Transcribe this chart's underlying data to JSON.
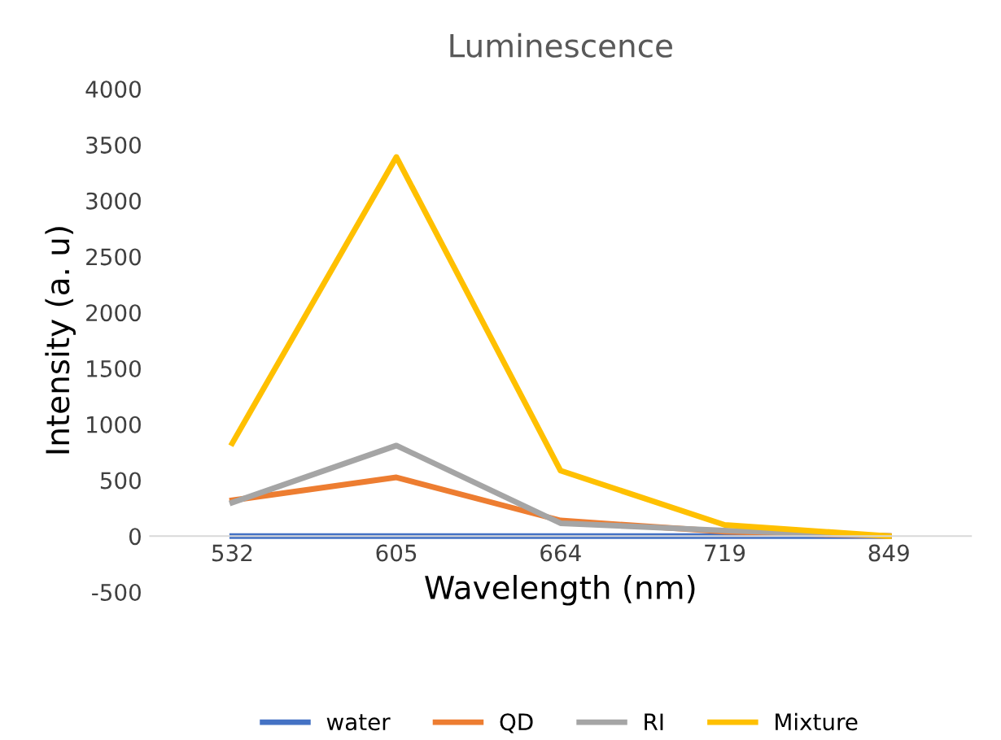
{
  "chart_data": {
    "type": "line",
    "title": "Luminescence",
    "xlabel": "Wavelength (nm)",
    "ylabel": "Intensity (a. u)",
    "categories": [
      "532",
      "605",
      "664",
      "719",
      "849"
    ],
    "series": [
      {
        "name": "water",
        "color": "#4472c4",
        "values": [
          0,
          0,
          0,
          0,
          0
        ]
      },
      {
        "name": "QD",
        "color": "#ed7d31",
        "values": [
          320,
          525,
          140,
          40,
          0
        ]
      },
      {
        "name": "RI",
        "color": "#a5a5a5",
        "values": [
          300,
          810,
          115,
          50,
          0
        ]
      },
      {
        "name": "Mixture",
        "color": "#ffc000",
        "values": [
          830,
          3390,
          585,
          100,
          0
        ]
      }
    ],
    "ylim": [
      -500,
      4000
    ],
    "yticks": [
      -500,
      0,
      500,
      1000,
      1500,
      2000,
      2500,
      3000,
      3500,
      4000
    ],
    "grid": false,
    "legend": "bottom",
    "marker": "none",
    "line_style": "solid"
  }
}
